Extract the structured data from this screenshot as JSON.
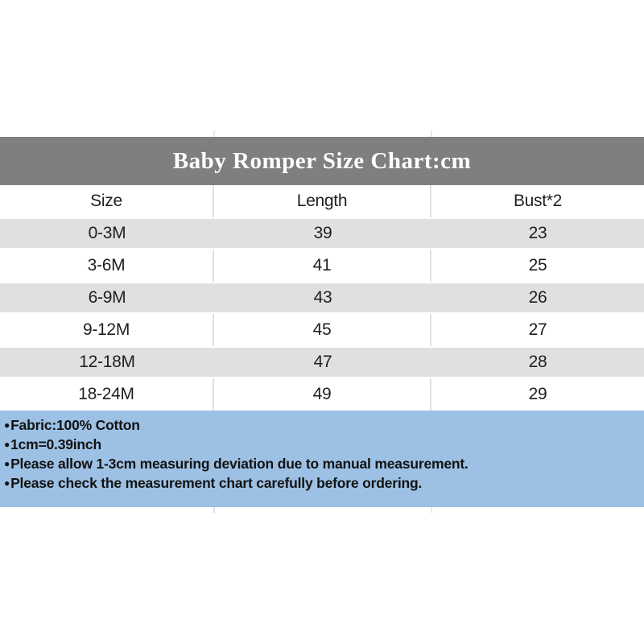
{
  "chart_data": {
    "type": "table",
    "title": "Baby Romper Size Chart:cm",
    "unit": "cm",
    "columns": [
      "Size",
      "Length",
      "Bust*2"
    ],
    "rows": [
      [
        "0-3M",
        39,
        23
      ],
      [
        "3-6M",
        41,
        25
      ],
      [
        "6-9M",
        43,
        26
      ],
      [
        "9-12M",
        45,
        27
      ],
      [
        "12-18M",
        47,
        28
      ],
      [
        "18-24M",
        49,
        29
      ]
    ],
    "notes": [
      "Fabric:100% Cotton",
      "1cm=0.39inch",
      "Please allow 1-3cm measuring deviation due to manual measurement.",
      "Please check the measurement chart carefully before ordering."
    ],
    "layout_hints": {
      "row_striping": "alternating gray/white starting gray",
      "notes_position": "bottom panel"
    }
  },
  "footer": {
    "bullet": "●"
  },
  "colors": {
    "title_bar_bg": "#7f7f7f",
    "title_text": "#ffffff",
    "row_alt_bg": "#e0e0e0",
    "row_white_bg": "#ffffff",
    "divider": "#e1e1e1",
    "notes_bg": "#9dc1e4",
    "body_text": "#1f1f1f",
    "page_bg": "#ffffff"
  }
}
